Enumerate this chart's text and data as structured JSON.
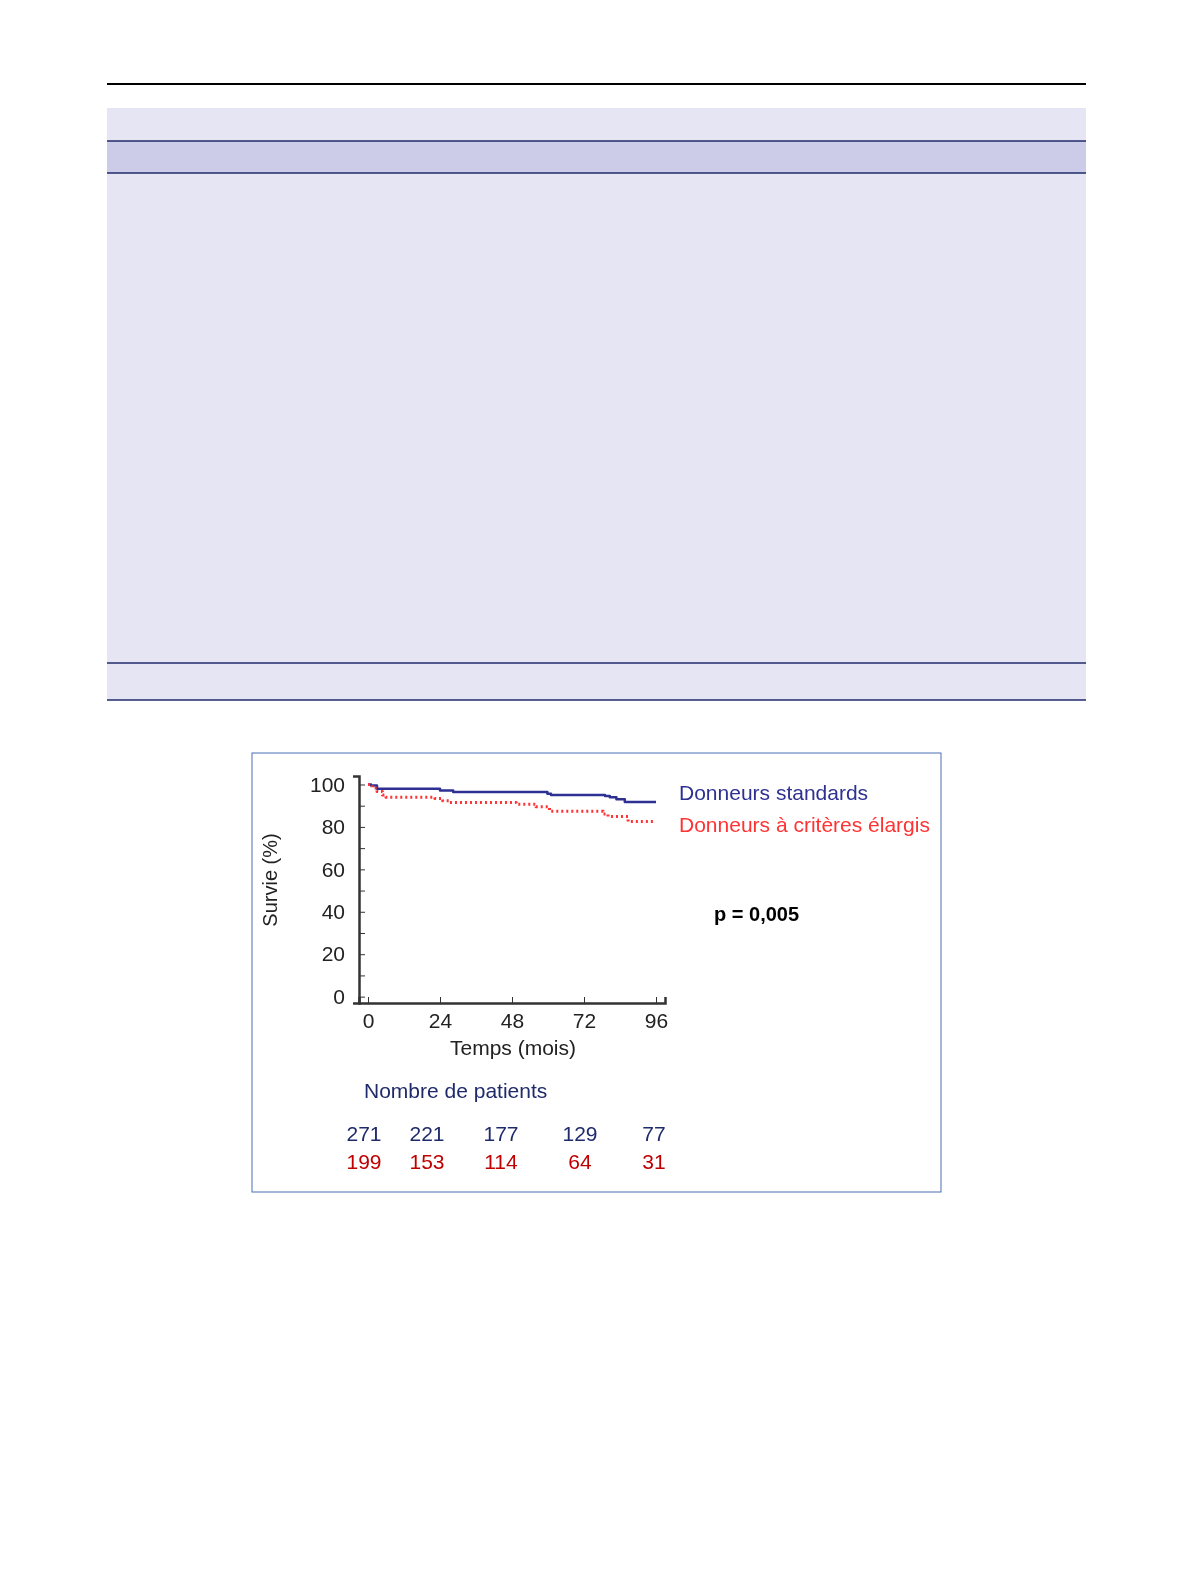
{
  "chart_data": {
    "type": "step",
    "xlabel": "Temps (mois)",
    "ylabel": "Survie (%)",
    "xlim": [
      -3,
      99
    ],
    "ylim": [
      -3,
      104
    ],
    "xticks": [
      0,
      24,
      48,
      72,
      96
    ],
    "yticks": [
      0,
      {
        "value": 10,
        "label": null
      },
      20,
      {
        "value": 30,
        "label": null
      },
      40,
      {
        "value": 50,
        "label": null
      },
      60,
      {
        "value": 70,
        "label": null
      },
      80,
      {
        "value": 90,
        "label": null
      },
      100
    ],
    "legend": "right",
    "grid": false,
    "marker": "none",
    "series": [
      {
        "name": "Donneurs standards",
        "color": "#2e3192",
        "line_style": "solid",
        "x": [
          0,
          1,
          3,
          24,
          28.4,
          59.8,
          61,
          79,
          80.6,
          82.8,
          85.6,
          96
        ],
        "values": [
          100,
          99.5,
          98,
          97.2,
          96.4,
          95.6,
          95,
          94.6,
          94,
          93,
          91.8,
          91.8
        ]
      },
      {
        "name": "Donneurs à critères élargis",
        "color": "#ff3333",
        "line_style": "dotted",
        "x": [
          0,
          1.4,
          3,
          4.8,
          6,
          22.3,
          24.9,
          27,
          49.4,
          56,
          60.5,
          78.4,
          80,
          86.7,
          95.1
        ],
        "values": [
          100,
          98.4,
          96.7,
          95,
          94,
          93.4,
          92.3,
          91.5,
          90.7,
          89.5,
          87.4,
          86.1,
          84.9,
          82.5,
          82.5
        ]
      }
    ],
    "annotations": [
      "p = 0,005",
      "Nombre de patients",
      "271",
      "221",
      "177",
      "129",
      "77",
      "199",
      "153",
      "114",
      "64",
      "31"
    ]
  }
}
